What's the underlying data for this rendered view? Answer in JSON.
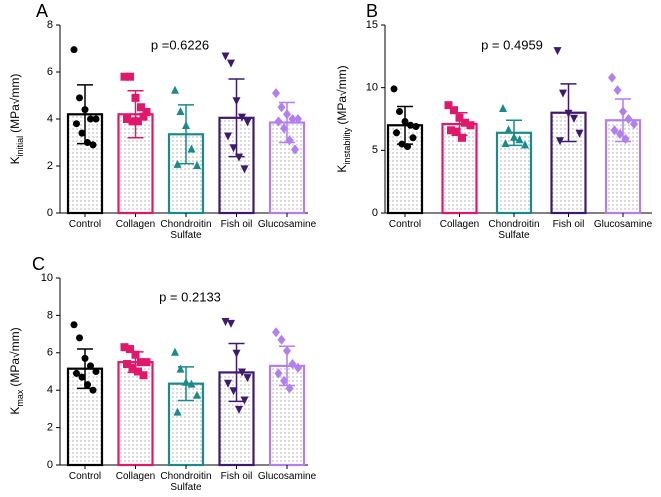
{
  "chart_data": [
    {
      "type": "bar",
      "panel": "A",
      "annotation": "p =0.6226",
      "y_label": {
        "main": "K",
        "sub": "initial",
        "unit": "(MPa√mm)"
      },
      "categories": [
        "Control",
        "Collagen",
        "Chondroitin Sulfate",
        "Fish oil",
        "Glucosamine"
      ],
      "colors": [
        "#000000",
        "#e0176a",
        "#1a8a8a",
        "#3d1a6e",
        "#b27ff0"
      ],
      "markers": [
        "circle",
        "square",
        "triangle",
        "triangle-down",
        "diamond"
      ],
      "values": [
        4.2,
        4.2,
        3.35,
        4.05,
        3.85
      ],
      "errors": [
        1.25,
        1.0,
        1.25,
        1.65,
        0.85
      ],
      "points": [
        [
          6.95,
          4.9,
          4.4,
          4.0,
          4.0,
          3.8,
          3.4,
          3.0,
          2.9
        ],
        [
          5.8,
          5.8,
          4.9,
          4.5,
          4.3,
          4.0,
          3.9,
          3.9,
          4.1
        ],
        [
          5.2,
          4.3,
          3.7,
          2.7,
          2.0,
          2.05
        ],
        [
          6.7,
          6.4,
          4.8,
          4.1,
          3.9,
          3.3,
          2.8,
          2.4,
          1.9
        ],
        [
          5.1,
          4.5,
          4.2,
          4.0,
          4.0,
          3.9,
          3.6,
          3.1,
          2.7
        ]
      ],
      "ylim": [
        0,
        8
      ],
      "yticks": [
        0,
        2,
        4,
        6,
        8
      ]
    },
    {
      "type": "bar",
      "panel": "B",
      "annotation": "p = 0.4959",
      "y_label": {
        "main": "K",
        "sub": "instability",
        "unit": "(MPa√mm)"
      },
      "categories": [
        "Control",
        "Collagen",
        "Chondroitin Sulfate",
        "Fish oil",
        "Glucosamine"
      ],
      "colors": [
        "#000000",
        "#e0176a",
        "#1a8a8a",
        "#3d1a6e",
        "#b27ff0"
      ],
      "markers": [
        "circle",
        "square",
        "triangle",
        "triangle-down",
        "diamond"
      ],
      "values": [
        7.0,
        7.1,
        6.4,
        8.0,
        7.4
      ],
      "errors": [
        1.5,
        0.9,
        1.0,
        2.3,
        1.7
      ],
      "points": [
        [
          9.9,
          8.1,
          7.3,
          7.0,
          6.9,
          6.4,
          5.5,
          5.3,
          6.0
        ],
        [
          8.6,
          8.2,
          7.6,
          7.2,
          7.0,
          6.6,
          6.5,
          6.0
        ],
        [
          8.3,
          6.6,
          6.0,
          5.8,
          5.4,
          5.5
        ],
        [
          13.0,
          9.6,
          8.0,
          7.6,
          6.4,
          5.8
        ],
        [
          10.8,
          9.8,
          8.1,
          7.5,
          7.1,
          6.6,
          6.3,
          5.9
        ]
      ],
      "ylim": [
        0,
        15
      ],
      "yticks": [
        0,
        5,
        10,
        15
      ]
    },
    {
      "type": "bar",
      "panel": "C",
      "annotation": "p = 0.2133",
      "y_label": {
        "main": "K",
        "sub": "max",
        "unit": "(MPa√mm)"
      },
      "categories": [
        "Control",
        "Collagen",
        "Chondroitin Sulfate",
        "Fish oil",
        "Glucosamine"
      ],
      "colors": [
        "#000000",
        "#e0176a",
        "#1a8a8a",
        "#3d1a6e",
        "#b27ff0"
      ],
      "markers": [
        "circle",
        "square",
        "triangle",
        "triangle-down",
        "diamond"
      ],
      "values": [
        5.15,
        5.5,
        4.35,
        4.95,
        5.3
      ],
      "errors": [
        1.05,
        0.55,
        0.9,
        1.55,
        1.05
      ],
      "points": [
        [
          7.5,
          6.8,
          5.7,
          5.3,
          5.0,
          4.9,
          4.7,
          4.3,
          4.0
        ],
        [
          6.3,
          6.2,
          5.9,
          5.5,
          5.5,
          5.4,
          5.2,
          5.0,
          4.8
        ],
        [
          6.0,
          5.1,
          4.4,
          4.3,
          3.7,
          2.8
        ],
        [
          7.7,
          7.6,
          6.0,
          5.0,
          4.7,
          4.4,
          4.0,
          3.0,
          3.5
        ],
        [
          7.1,
          6.7,
          6.1,
          5.4,
          5.2,
          4.9,
          4.5,
          4.1
        ]
      ],
      "ylim": [
        0,
        10
      ],
      "yticks": [
        0,
        2,
        4,
        6,
        8,
        10
      ]
    }
  ]
}
